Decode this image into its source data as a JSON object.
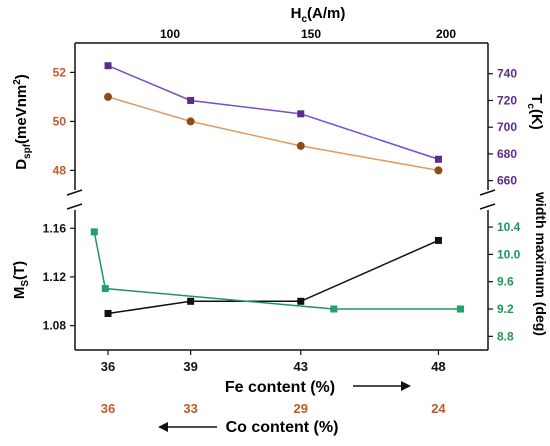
{
  "chart_data": {
    "type": "line",
    "colors": {
      "orange": "#c0592b",
      "orange_line": "#e39a5f",
      "orange_marker": "#8b4c1a",
      "purple": "#5b2c8c",
      "purple_line": "#7b4dc7",
      "purple_marker": "#5b2c8c",
      "black": "#111111",
      "green": "#1a9a5a",
      "green_marker": "#1fa16a"
    },
    "top_panel": {
      "top_axis": {
        "label_main": "H",
        "label_sub": "c",
        "label_tail": "(A/m)",
        "ticks": [
          "100",
          "150",
          "200"
        ]
      },
      "left_axis": {
        "label_main": "D",
        "label_sub": "spf",
        "label_mid": "(meVnm",
        "label_sup": "2",
        "label_tail": ")",
        "ylim": [
          47.2,
          53.2
        ],
        "ticks": [
          "48",
          "50",
          "52"
        ]
      },
      "right_axis": {
        "label_main": "T",
        "label_sub": "c",
        "label_tail": "(K)",
        "ylim": [
          653,
          763
        ],
        "ticks": [
          "660",
          "680",
          "700",
          "720",
          "740"
        ]
      },
      "series": [
        {
          "axis": "left",
          "x": [
            36,
            39,
            43,
            48
          ],
          "y": [
            51.0,
            50.0,
            49.0,
            48.0
          ]
        },
        {
          "axis": "right",
          "x": [
            36,
            39,
            43,
            48
          ],
          "y": [
            746,
            720,
            710,
            676
          ]
        }
      ]
    },
    "bottom_panel": {
      "left_axis": {
        "label_main": "M",
        "label_sub": "S",
        "label_tail": "(T)",
        "ylim": [
          1.06,
          1.175
        ],
        "ticks": [
          "1.08",
          "1.12",
          "1.16"
        ]
      },
      "right_axis": {
        "label": "width maximum (deg)",
        "ylim": [
          8.6,
          10.65
        ],
        "ticks": [
          "8.8",
          "9.2",
          "9.6",
          "10.0",
          "10.4"
        ]
      },
      "series": [
        {
          "axis": "left",
          "x": [
            36,
            39,
            43,
            48
          ],
          "y": [
            1.09,
            1.1,
            1.1,
            1.15
          ]
        },
        {
          "axis": "right",
          "x": [
            35.5,
            35.9,
            44.2,
            48.8
          ],
          "y": [
            10.33,
            9.5,
            9.2,
            9.2
          ]
        }
      ]
    },
    "x_axis": {
      "xlim": [
        34.8,
        49.8
      ],
      "ticks": [
        36,
        39,
        43,
        48
      ],
      "tick_labels": [
        "36",
        "39",
        "43",
        "48"
      ],
      "label": "Fe content (%)"
    },
    "co_axis": {
      "tick_labels": [
        "36",
        "33",
        "29",
        "24"
      ],
      "label": "Co content (%)"
    }
  }
}
